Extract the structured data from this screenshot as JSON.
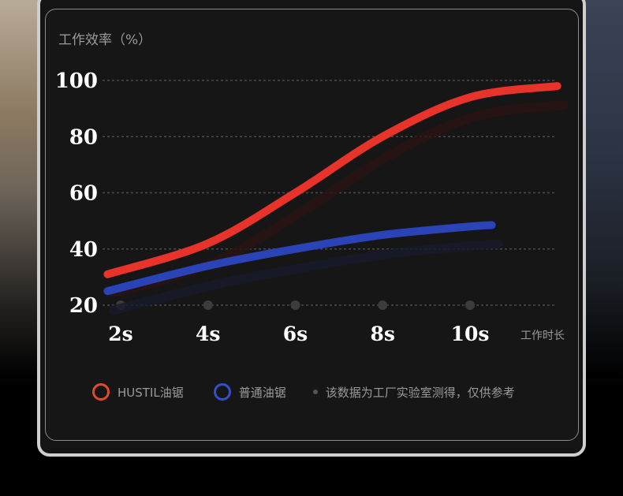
{
  "chart_data": {
    "type": "line",
    "ylabel": "工作效率（%）",
    "xlabel": "工作时长",
    "y_ticks": [
      "100",
      "80",
      "60",
      "40",
      "20"
    ],
    "y_tick_values": [
      100,
      80,
      60,
      40,
      20
    ],
    "x_ticks": [
      "2s",
      "4s",
      "6s",
      "8s",
      "10s"
    ],
    "x_tick_values": [
      2,
      4,
      6,
      8,
      10
    ],
    "ylim": [
      20,
      100
    ],
    "xlim": [
      2,
      10
    ],
    "grid": true,
    "legend_placement": "bottom",
    "series": [
      {
        "name": "HUSTIL油锯",
        "color": "#e8332a",
        "x": [
          1.7,
          4,
          6,
          8,
          10,
          12
        ],
        "values": [
          31,
          42,
          60,
          80,
          94,
          98
        ]
      },
      {
        "name": "普通油锯",
        "color": "#2a44b8",
        "x": [
          1.7,
          4,
          6,
          8,
          10,
          10.5
        ],
        "values": [
          25,
          34,
          40,
          45,
          48,
          48.5
        ]
      }
    ],
    "note": "该数据为工厂实验室测得，仅供参考"
  }
}
